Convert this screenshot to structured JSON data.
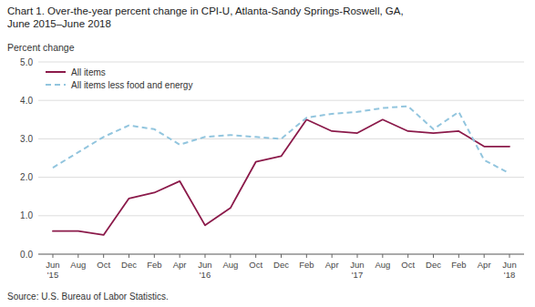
{
  "chart_data": {
    "type": "line",
    "title": "Chart 1. Over-the-year percent change in CPI-U, Atlanta-Sandy Springs-Roswell, GA,\nJune 2015–June 2018",
    "ylabel": "Percent change",
    "source": "Source: U.S. Bureau of Labor Statistics.",
    "categories": [
      "Jun\n'15",
      "Aug",
      "Oct",
      "Dec",
      "Feb",
      "Apr",
      "Jun\n'16",
      "Aug",
      "Oct",
      "Dec",
      "Feb",
      "Apr",
      "Jun\n'17",
      "Aug",
      "Oct",
      "Dec",
      "Feb",
      "Apr",
      "Jun\n'18"
    ],
    "series": [
      {
        "name": "All items",
        "color": "#8B1A4A",
        "line_style": "solid",
        "values": [
          0.6,
          0.6,
          0.5,
          1.45,
          1.6,
          1.9,
          0.75,
          1.2,
          2.4,
          2.55,
          3.5,
          3.2,
          3.15,
          3.5,
          3.2,
          3.15,
          3.2,
          2.8,
          2.8
        ]
      },
      {
        "name": "All items less food and energy",
        "color": "#92C5DE",
        "line_style": "dashed",
        "values": [
          2.25,
          2.65,
          3.05,
          3.35,
          3.25,
          2.85,
          3.05,
          3.1,
          3.05,
          3.0,
          3.55,
          3.65,
          3.7,
          3.8,
          3.85,
          3.25,
          3.7,
          2.45,
          2.1
        ]
      }
    ],
    "ylim": [
      0.0,
      5.0
    ],
    "yticks": [
      {
        "value": 0.0,
        "label": "0.0"
      },
      {
        "value": 1.0,
        "label": "1.0"
      },
      {
        "value": 2.0,
        "label": "2.0"
      },
      {
        "value": 3.0,
        "label": "3.0"
      },
      {
        "value": 4.0,
        "label": "4.0"
      },
      {
        "value": 5.0,
        "label": "5.0"
      }
    ],
    "grid": true,
    "legend": "upper left"
  }
}
